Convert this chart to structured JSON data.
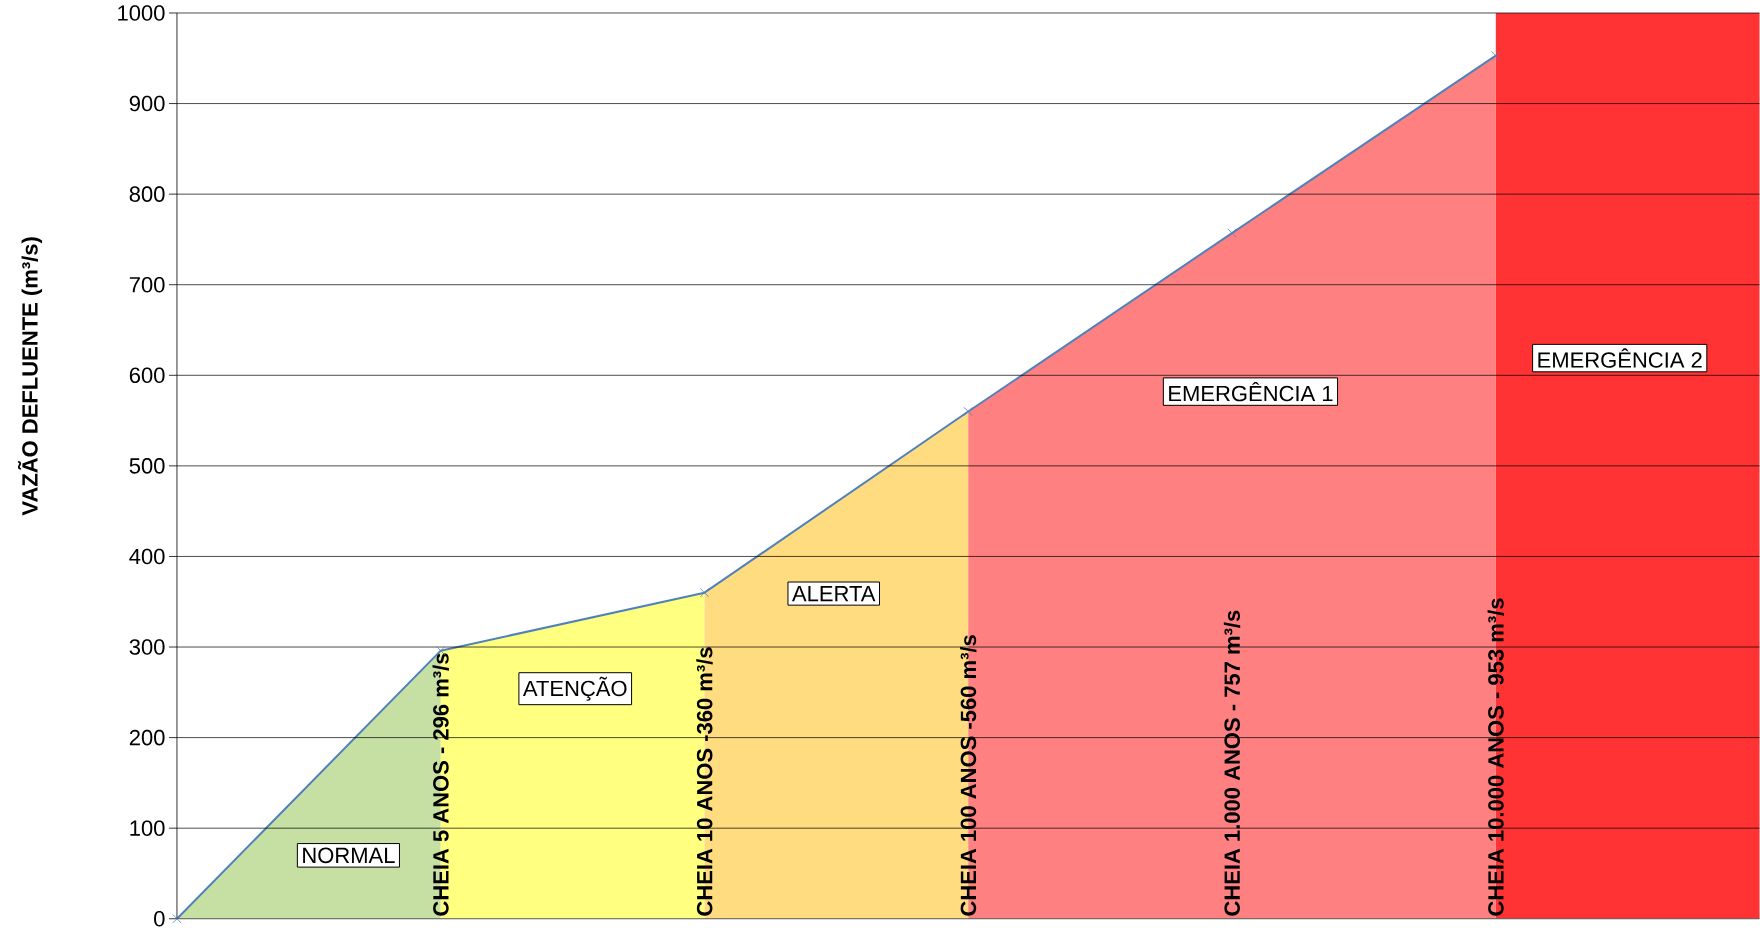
{
  "chart_data": {
    "type": "area",
    "ylabel": "VAZÃO DEFLUENTE (m³/s)",
    "categories": [
      null,
      null,
      null,
      null,
      null,
      null,
      null
    ],
    "ylim": [
      0,
      1000
    ],
    "yticks": [
      0,
      100,
      200,
      300,
      400,
      500,
      600,
      700,
      800,
      900,
      1000
    ],
    "grid": "y",
    "tick_labels": "y",
    "series": [
      {
        "name": "NORMAL",
        "color": "#c6e0a4",
        "values": [
          0,
          296,
          null,
          null,
          null,
          null,
          null
        ]
      },
      {
        "name": "ATENÇÃO",
        "color": "#ffff80",
        "values": [
          null,
          296,
          360,
          null,
          null,
          null,
          null
        ]
      },
      {
        "name": "ALERTA",
        "color": "#ffdc80",
        "values": [
          null,
          null,
          360,
          560,
          null,
          null,
          null
        ]
      },
      {
        "name": "EMERGÊNCIA 1",
        "color": "#ff8080",
        "values": [
          null,
          null,
          null,
          560,
          757,
          953,
          null
        ]
      },
      {
        "name": "EMERGÊNCIA 2",
        "color": "#ff3333",
        "values": [
          null,
          null,
          null,
          null,
          null,
          1000,
          1000
        ]
      },
      {
        "type": "line",
        "marker": "cross",
        "color": "#4f81bd",
        "values": [
          0,
          296,
          360,
          560,
          757,
          953,
          null
        ]
      }
    ],
    "annotations": [
      "CHEIA 5 ANOS - 296 m³/s",
      "CHEIA 10 ANOS -360 m³/s",
      "CHEIA 100 ANOS -560 m³/s",
      "CHEIA 1.000 ANOS - 757 m³/s",
      "CHEIA 10.000 ANOS - 953 m³/s"
    ]
  }
}
